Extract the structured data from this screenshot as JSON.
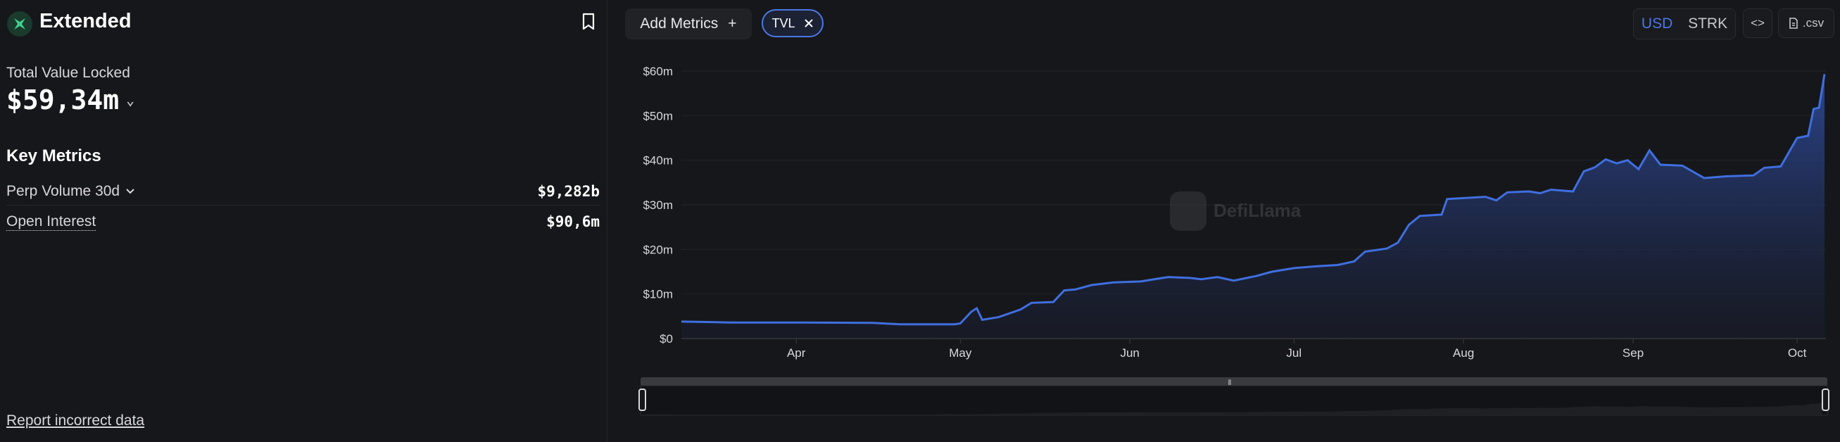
{
  "protocol": {
    "name": "Extended"
  },
  "tvl": {
    "label": "Total Value Locked",
    "value": "$59,34m"
  },
  "key_metrics": {
    "title": "Key Metrics",
    "items": [
      {
        "label": "Perp Volume 30d",
        "value": "$9,282b"
      },
      {
        "label": "Open Interest",
        "value": "$90,6m"
      }
    ]
  },
  "report_link": "Report incorrect data",
  "toolbar": {
    "add_metrics_label": "Add Metrics",
    "chip_label": "TVL",
    "currency_options": [
      "USD",
      "STRK"
    ],
    "selected_currency": "USD",
    "csv_label": ".csv",
    "embed_label": "<>"
  },
  "watermark": "DefiLlama",
  "colors": {
    "accent": "#4a78e8",
    "line": "#3f6fe0",
    "background": "#16171a"
  },
  "chart_data": {
    "type": "area",
    "title": "",
    "xlabel": "",
    "ylabel": "",
    "ylim": [
      0,
      60
    ],
    "y_unit": "m",
    "y_ticks": [
      0,
      10,
      20,
      30,
      40,
      50,
      60
    ],
    "y_tick_labels": [
      "$0",
      "$10m",
      "$20m",
      "$30m",
      "$40m",
      "$50m",
      "$60m"
    ],
    "x_tick_labels": [
      "Apr",
      "May",
      "Jun",
      "Jul",
      "Aug",
      "Sep",
      "Oct"
    ],
    "x_tick_dates": [
      "2025-04-01",
      "2025-05-01",
      "2025-06-01",
      "2025-07-01",
      "2025-08-01",
      "2025-09-01",
      "2025-10-01"
    ],
    "x_range": [
      "2025-03-11",
      "2025-10-06"
    ],
    "grid": true,
    "legend": "none",
    "series": [
      {
        "points": [
          [
            "2025-03-11",
            3.8
          ],
          [
            "2025-03-20",
            3.6
          ],
          [
            "2025-04-01",
            3.6
          ],
          [
            "2025-04-15",
            3.5
          ],
          [
            "2025-04-20",
            3.2
          ],
          [
            "2025-04-30",
            3.2
          ],
          [
            "2025-05-01",
            3.4
          ],
          [
            "2025-05-03",
            6.0
          ],
          [
            "2025-05-04",
            6.8
          ],
          [
            "2025-05-05",
            4.2
          ],
          [
            "2025-05-08",
            4.8
          ],
          [
            "2025-05-12",
            6.5
          ],
          [
            "2025-05-14",
            8.0
          ],
          [
            "2025-05-18",
            8.2
          ],
          [
            "2025-05-20",
            10.8
          ],
          [
            "2025-05-22",
            11.0
          ],
          [
            "2025-05-25",
            12.0
          ],
          [
            "2025-05-29",
            12.6
          ],
          [
            "2025-06-03",
            12.8
          ],
          [
            "2025-06-08",
            13.8
          ],
          [
            "2025-06-12",
            13.6
          ],
          [
            "2025-06-14",
            13.3
          ],
          [
            "2025-06-17",
            13.8
          ],
          [
            "2025-06-20",
            13.0
          ],
          [
            "2025-06-24",
            14.0
          ],
          [
            "2025-06-27",
            15.0
          ],
          [
            "2025-07-01",
            15.8
          ],
          [
            "2025-07-05",
            16.2
          ],
          [
            "2025-07-09",
            16.5
          ],
          [
            "2025-07-12",
            17.3
          ],
          [
            "2025-07-14",
            19.5
          ],
          [
            "2025-07-18",
            20.2
          ],
          [
            "2025-07-20",
            21.5
          ],
          [
            "2025-07-22",
            25.5
          ],
          [
            "2025-07-24",
            27.5
          ],
          [
            "2025-07-28",
            27.8
          ],
          [
            "2025-07-29",
            31.3
          ],
          [
            "2025-08-05",
            31.8
          ],
          [
            "2025-08-07",
            31.0
          ],
          [
            "2025-08-09",
            32.8
          ],
          [
            "2025-08-13",
            33.0
          ],
          [
            "2025-08-15",
            32.6
          ],
          [
            "2025-08-17",
            33.4
          ],
          [
            "2025-08-21",
            33.0
          ],
          [
            "2025-08-23",
            37.5
          ],
          [
            "2025-08-25",
            38.4
          ],
          [
            "2025-08-27",
            40.2
          ],
          [
            "2025-08-29",
            39.3
          ],
          [
            "2025-08-31",
            40.0
          ],
          [
            "2025-09-02",
            38.0
          ],
          [
            "2025-09-04",
            42.2
          ],
          [
            "2025-09-06",
            39.0
          ],
          [
            "2025-09-10",
            38.8
          ],
          [
            "2025-09-14",
            36.0
          ],
          [
            "2025-09-18",
            36.4
          ],
          [
            "2025-09-23",
            36.6
          ],
          [
            "2025-09-25",
            38.3
          ],
          [
            "2025-09-28",
            38.6
          ],
          [
            "2025-10-01",
            45.0
          ],
          [
            "2025-10-03",
            45.5
          ],
          [
            "2025-10-04",
            51.5
          ],
          [
            "2025-10-05",
            51.8
          ],
          [
            "2025-10-06",
            59.3
          ]
        ]
      }
    ]
  }
}
